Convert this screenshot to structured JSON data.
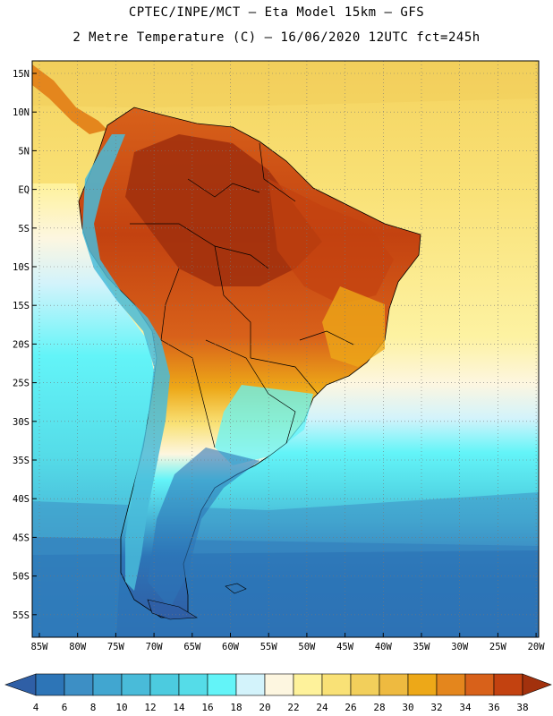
{
  "header": {
    "line1": "CPTEC/INPE/MCT –  Eta Model 15km – GFS",
    "line2": "2 Metre Temperature (C) – 16/06/2020 12UTC fct=245h"
  },
  "map": {
    "lat_labels": [
      "15N",
      "10N",
      "5N",
      "EQ",
      "5S",
      "10S",
      "15S",
      "20S",
      "25S",
      "30S",
      "35S",
      "40S",
      "45S",
      "50S",
      "55S"
    ],
    "lon_labels": [
      "85W",
      "80W",
      "75W",
      "70W",
      "65W",
      "60W",
      "55W",
      "50W",
      "45W",
      "40W",
      "35W",
      "30W",
      "25W",
      "20W"
    ]
  },
  "colorbar": {
    "labels": [
      "4",
      "6",
      "8",
      "10",
      "12",
      "14",
      "16",
      "18",
      "20",
      "22",
      "24",
      "26",
      "28",
      "30",
      "32",
      "34",
      "36",
      "38"
    ],
    "colors": [
      "#2f5fa6",
      "#2d75b7",
      "#3d8fc5",
      "#41a6d0",
      "#49bbd9",
      "#4ccbdf",
      "#55dce8",
      "#63f4f8",
      "#d3f3fb",
      "#fdf6e0",
      "#fef29b",
      "#f9e176",
      "#f2cf5b",
      "#eeba40",
      "#eda818",
      "#e4861d",
      "#d8611a",
      "#c34210",
      "#a2310d"
    ]
  },
  "colors": {
    "ocean_north": "#f2cf5b",
    "ocean_tropical": "#f9e176",
    "ocean_pale": "#fdf6e0",
    "ocean_cyan": "#55dce8",
    "ocean_deep": "#2d75b7"
  }
}
